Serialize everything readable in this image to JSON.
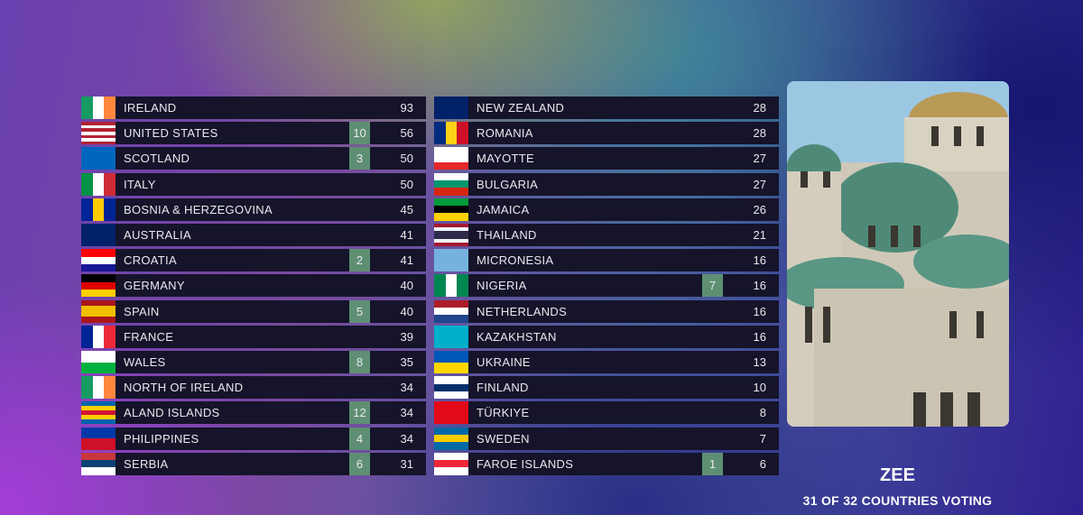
{
  "scoreboard": {
    "columns": [
      {
        "rows": [
          {
            "country": "IRELAND",
            "total": 93
          },
          {
            "country": "UNITED STATES",
            "points": 10,
            "total": 56
          },
          {
            "country": "SCOTLAND",
            "points": 3,
            "total": 50
          },
          {
            "country": "ITALY",
            "total": 50
          },
          {
            "country": "BOSNIA & HERZEGOVINA",
            "total": 45
          },
          {
            "country": "AUSTRALIA",
            "total": 41
          },
          {
            "country": "CROATIA",
            "points": 2,
            "total": 41
          },
          {
            "country": "GERMANY",
            "total": 40
          },
          {
            "country": "SPAIN",
            "points": 5,
            "total": 40
          },
          {
            "country": "FRANCE",
            "total": 39
          },
          {
            "country": "WALES",
            "points": 8,
            "total": 35
          },
          {
            "country": "NORTH OF IRELAND",
            "total": 34
          },
          {
            "country": "ALAND ISLANDS",
            "points": 12,
            "total": 34
          },
          {
            "country": "PHILIPPINES",
            "points": 4,
            "total": 34
          },
          {
            "country": "SERBIA",
            "points": 6,
            "total": 31
          }
        ]
      },
      {
        "rows": [
          {
            "country": "NEW ZEALAND",
            "total": 28
          },
          {
            "country": "ROMANIA",
            "total": 28
          },
          {
            "country": "MAYOTTE",
            "total": 27
          },
          {
            "country": "BULGARIA",
            "total": 27
          },
          {
            "country": "JAMAICA",
            "total": 26
          },
          {
            "country": "THAILAND",
            "total": 21
          },
          {
            "country": "MICRONESIA",
            "total": 16
          },
          {
            "country": "NIGERIA",
            "points": 7,
            "total": 16
          },
          {
            "country": "NETHERLANDS",
            "total": 16
          },
          {
            "country": "KAZAKHSTAN",
            "total": 16
          },
          {
            "country": "UKRAINE",
            "total": 13
          },
          {
            "country": "FINLAND",
            "total": 10
          },
          {
            "country": "TÜRKIYE",
            "total": 8
          },
          {
            "country": "SWEDEN",
            "total": 7
          },
          {
            "country": "FAROE ISLANDS",
            "points": 1,
            "total": 6
          }
        ]
      }
    ]
  },
  "voter": {
    "name": "ZEE",
    "status": "31 OF 32 COUNTRIES VOTING"
  }
}
